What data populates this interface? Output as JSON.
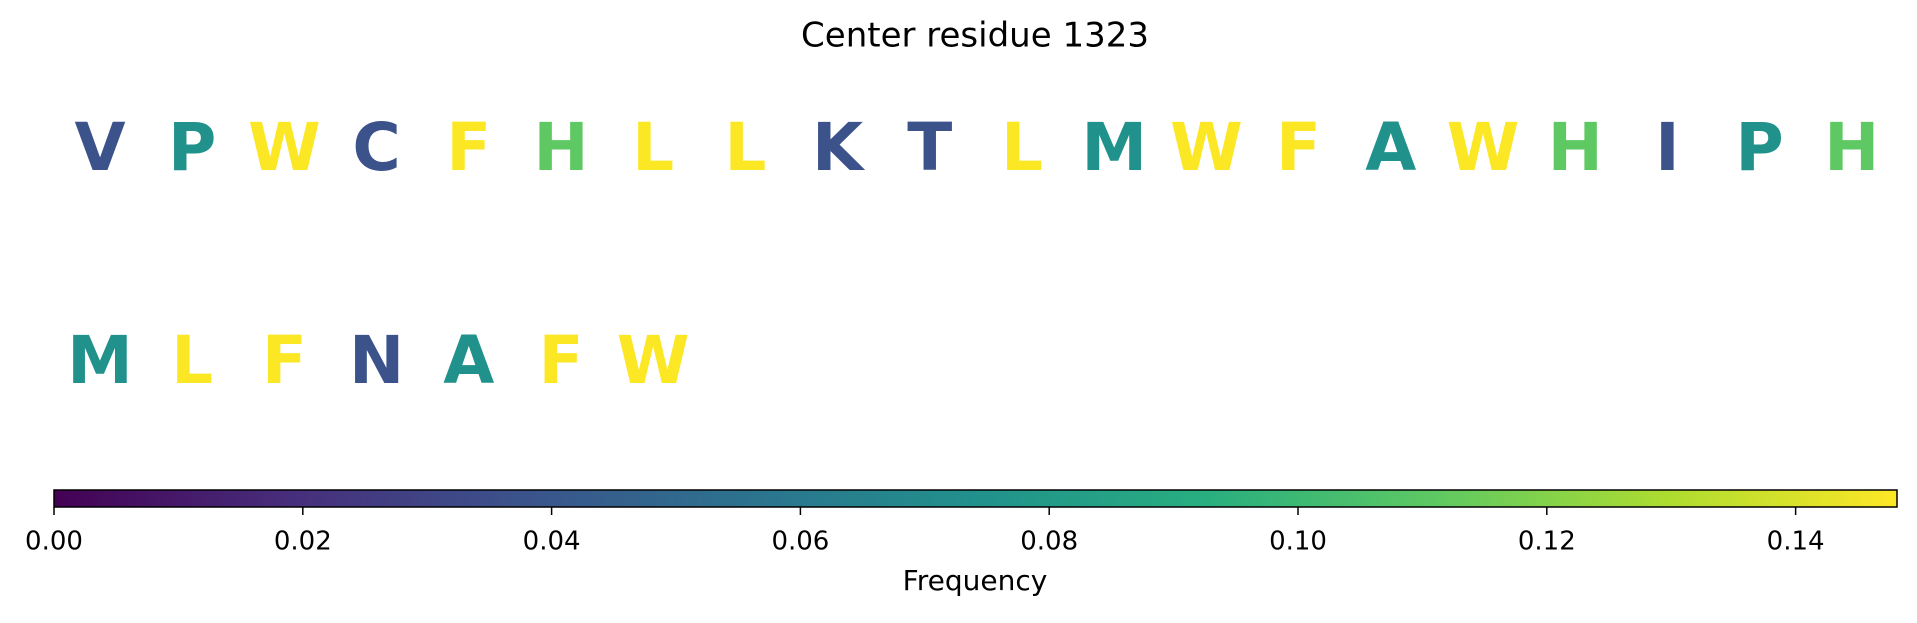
{
  "chart_data": {
    "type": "letter-frequency",
    "title": "Center residue 1323",
    "letters": [
      "V",
      "P",
      "W",
      "C",
      "F",
      "H",
      "L",
      "L",
      "K",
      "T",
      "L",
      "M",
      "W",
      "F",
      "A",
      "W",
      "H",
      "I",
      "P",
      "H",
      "M",
      "L",
      "F",
      "N",
      "A",
      "F",
      "W"
    ],
    "values": [
      0.037,
      0.074,
      0.148,
      0.037,
      0.148,
      0.111,
      0.148,
      0.148,
      0.037,
      0.037,
      0.148,
      0.074,
      0.148,
      0.148,
      0.074,
      0.148,
      0.111,
      0.037,
      0.074,
      0.111,
      0.074,
      0.148,
      0.148,
      0.037,
      0.074,
      0.148,
      0.148
    ],
    "colormap": "viridis",
    "colorbar_label": "Frequency",
    "xlim": [
      0,
      0.14815
    ],
    "xticks": [
      {
        "value": 0,
        "label": "0.00"
      },
      0.02,
      0.04,
      0.06,
      0.08,
      {
        "value": 0.1,
        "label": "0.10"
      },
      0.12,
      0.14
    ]
  }
}
